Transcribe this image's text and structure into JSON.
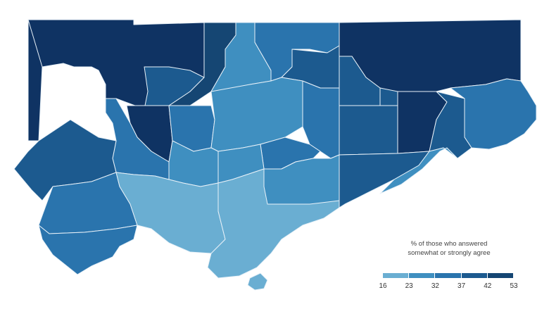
{
  "legend": {
    "title_line1": "% of those who answered",
    "title_line2": "somewhat or strongly agree",
    "ticks": [
      "16",
      "23",
      "32",
      "37",
      "42",
      "53"
    ],
    "colors": [
      "#6aaed2",
      "#3f8fc0",
      "#2a74ad",
      "#1c5a8f",
      "#154673",
      "#0f3363"
    ]
  }
}
